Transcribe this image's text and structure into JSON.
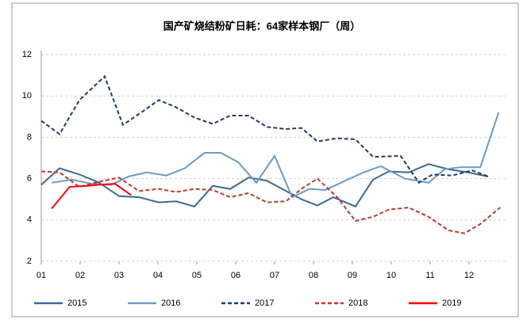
{
  "chart_data": {
    "type": "line",
    "title": "国产矿烧结粉矿日耗：64家样本钢厂（周）",
    "xlim": [
      1,
      13
    ],
    "xticks": [
      {
        "value": 1,
        "label": "01"
      },
      {
        "value": 2,
        "label": "02"
      },
      {
        "value": 3,
        "label": "03"
      },
      {
        "value": 4,
        "label": "04"
      },
      {
        "value": 5,
        "label": "05"
      },
      {
        "value": 6,
        "label": "06"
      },
      {
        "value": 7,
        "label": "07"
      },
      {
        "value": 8,
        "label": "08"
      },
      {
        "value": 9,
        "label": "09"
      },
      {
        "value": 10,
        "label": "10"
      },
      {
        "value": 11,
        "label": "11"
      },
      {
        "value": 12,
        "label": "12"
      }
    ],
    "ylim": [
      2,
      12
    ],
    "yticks": [
      2,
      4,
      6,
      8,
      10,
      12
    ],
    "grid": true,
    "legend": "bottom",
    "series": [
      {
        "name": "2015",
        "color": "#3a6a95",
        "dashed": false,
        "x": [
          1,
          1.47,
          1.98,
          2.49,
          3,
          3.51,
          4.02,
          4.47,
          4.94,
          5.41,
          5.86,
          6.33,
          6.8,
          7.69,
          8.1,
          8.51,
          9.08,
          9.53,
          9.94,
          10.45,
          10.96,
          11.47,
          11.98,
          12.49
        ],
        "values": [
          5.7,
          6.5,
          6.2,
          5.8,
          5.15,
          5.1,
          4.85,
          4.9,
          4.65,
          5.65,
          5.5,
          6.05,
          5.9,
          5.0,
          4.7,
          5.1,
          4.65,
          5.95,
          6.35,
          6.3,
          6.7,
          6.45,
          6.3,
          6.1
        ]
      },
      {
        "name": "2016",
        "color": "#6a9cc4",
        "dashed": false,
        "x": [
          1.27,
          1.78,
          2.29,
          2.8,
          3.24,
          3.71,
          4.22,
          4.69,
          5.2,
          5.61,
          6.06,
          6.53,
          7,
          7.45,
          7.9,
          8.31,
          8.82,
          9.29,
          9.73,
          10.35,
          10.96,
          11.37,
          11.78,
          12.29,
          12.76
        ],
        "values": [
          5.8,
          5.95,
          5.75,
          5.7,
          6.1,
          6.3,
          6.15,
          6.5,
          7.25,
          7.25,
          6.8,
          5.8,
          7.1,
          5.1,
          5.5,
          5.45,
          5.9,
          6.3,
          6.6,
          6.0,
          5.8,
          6.45,
          6.55,
          6.55,
          9.2
        ]
      },
      {
        "name": "2017",
        "color": "#1f3a6b",
        "dashed": true,
        "x": [
          1,
          1.47,
          1.98,
          2.63,
          3.1,
          3.57,
          4.02,
          4.47,
          4.94,
          5.41,
          5.86,
          6.33,
          6.8,
          7.29,
          7.69,
          8.1,
          8.61,
          9.08,
          9.53,
          10.24,
          10.71,
          11.06,
          11.57,
          12.08,
          12.49
        ],
        "values": [
          8.8,
          8.15,
          9.8,
          10.95,
          8.6,
          9.2,
          9.8,
          9.45,
          8.95,
          8.65,
          9.05,
          9.05,
          8.5,
          8.4,
          8.45,
          7.8,
          7.95,
          7.9,
          7.05,
          7.1,
          5.8,
          6.2,
          6.15,
          6.4,
          6.1
        ]
      },
      {
        "name": "2018",
        "color": "#c0392b",
        "dashed": true,
        "x": [
          1,
          1.47,
          1.98,
          2.49,
          3,
          3.51,
          4.02,
          4.47,
          4.94,
          5.41,
          5.86,
          6.33,
          6.8,
          7.29,
          7.69,
          8.1,
          8.61,
          9.08,
          9.53,
          9.94,
          10.45,
          10.96,
          11.47,
          11.88,
          12.29,
          12.8
        ],
        "values": [
          6.35,
          6.3,
          5.6,
          5.85,
          6.05,
          5.4,
          5.5,
          5.35,
          5.5,
          5.45,
          5.1,
          5.3,
          4.85,
          4.9,
          5.5,
          6.0,
          5.1,
          3.95,
          4.15,
          4.5,
          4.6,
          4.15,
          3.5,
          3.35,
          3.8,
          4.6
        ]
      },
      {
        "name": "2019",
        "color": "#ff0000",
        "dashed": false,
        "x": [
          1.27,
          1.73,
          2.18,
          2.49,
          2.9,
          3.31
        ],
        "values": [
          4.55,
          5.6,
          5.65,
          5.7,
          5.75,
          5.2
        ]
      }
    ]
  }
}
